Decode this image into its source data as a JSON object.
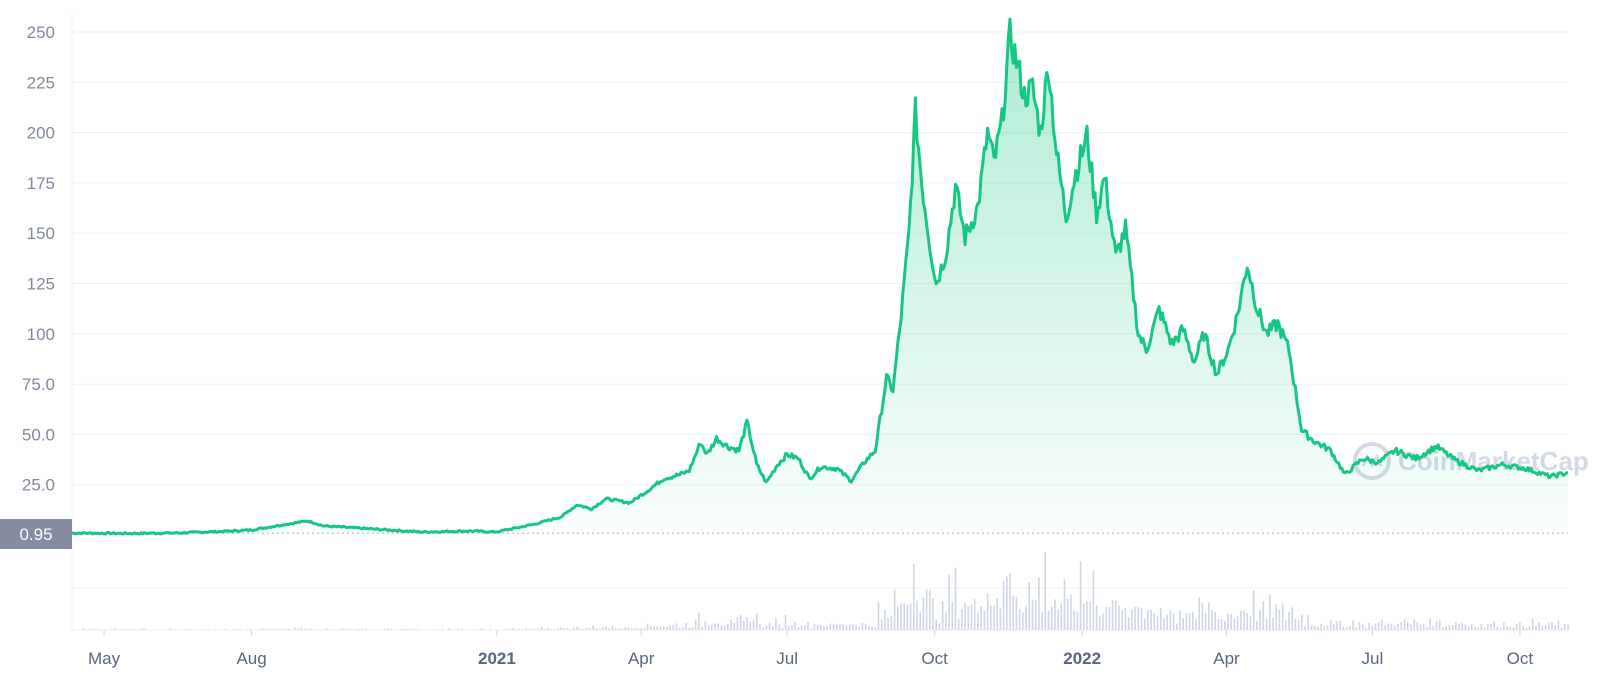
{
  "watermark": {
    "text": "CoinMarketCap",
    "icon": "coinmarketcap-logo-icon"
  },
  "colors": {
    "line": "#16c784",
    "fill_top": "#16c784",
    "grid": "#eff2f5",
    "volume": "#cfd6e4",
    "badge": "#858ca2",
    "axis_text": "#808a9d"
  },
  "chart_data": {
    "type": "area",
    "title": "",
    "xlabel": "",
    "ylabel": "",
    "ylim": [
      0,
      250
    ],
    "grid": true,
    "y_ticks": [
      "250",
      "225",
      "200",
      "175",
      "150",
      "125",
      "100",
      "75.0",
      "50.0",
      "25.0"
    ],
    "y_tick_values": [
      250,
      225,
      200,
      175,
      150,
      125,
      100,
      75,
      50,
      25
    ],
    "x_ticks": [
      {
        "label": "May",
        "date": "2020-05-01",
        "bold": false
      },
      {
        "label": "Aug",
        "date": "2020-08-01",
        "bold": false
      },
      {
        "label": "2021",
        "date": "2021-01-01",
        "bold": true
      },
      {
        "label": "Apr",
        "date": "2021-04-01",
        "bold": false
      },
      {
        "label": "Jul",
        "date": "2021-07-01",
        "bold": false
      },
      {
        "label": "Oct",
        "date": "2021-10-01",
        "bold": false
      },
      {
        "label": "2022",
        "date": "2022-01-01",
        "bold": true
      },
      {
        "label": "Apr",
        "date": "2022-04-01",
        "bold": false
      },
      {
        "label": "Jul",
        "date": "2022-07-01",
        "bold": false
      },
      {
        "label": "Oct",
        "date": "2022-10-01",
        "bold": false
      }
    ],
    "x_range": [
      "2020-04-11",
      "2022-10-31"
    ],
    "current_price": {
      "label": "0.95",
      "value": 0.95
    },
    "series": [
      {
        "points": [
          [
            "2020-04-11",
            0.95
          ],
          [
            "2020-05-15",
            0.8
          ],
          [
            "2020-06-15",
            1.0
          ],
          [
            "2020-07-15",
            1.8
          ],
          [
            "2020-08-01",
            2.5
          ],
          [
            "2020-08-20",
            5.0
          ],
          [
            "2020-09-05",
            7.0
          ],
          [
            "2020-09-15",
            4.5
          ],
          [
            "2020-10-15",
            3.0
          ],
          [
            "2020-11-15",
            1.5
          ],
          [
            "2020-12-15",
            2.0
          ],
          [
            "2020-12-31",
            1.5
          ],
          [
            "2021-01-10",
            3.0
          ],
          [
            "2021-01-25",
            5.5
          ],
          [
            "2021-02-10",
            9.0
          ],
          [
            "2021-02-20",
            15.0
          ],
          [
            "2021-03-01",
            13.0
          ],
          [
            "2021-03-10",
            18.0
          ],
          [
            "2021-03-25",
            16.0
          ],
          [
            "2021-04-05",
            22.0
          ],
          [
            "2021-04-15",
            28.0
          ],
          [
            "2021-04-25",
            30.0
          ],
          [
            "2021-05-01",
            32.0
          ],
          [
            "2021-05-08",
            46.0
          ],
          [
            "2021-05-12",
            40.0
          ],
          [
            "2021-05-18",
            48.0
          ],
          [
            "2021-05-25",
            44.0
          ],
          [
            "2021-06-01",
            42.0
          ],
          [
            "2021-06-06",
            56.0
          ],
          [
            "2021-06-12",
            35.0
          ],
          [
            "2021-06-18",
            26.0
          ],
          [
            "2021-06-25",
            35.0
          ],
          [
            "2021-07-01",
            40.0
          ],
          [
            "2021-07-08",
            38.0
          ],
          [
            "2021-07-15",
            28.0
          ],
          [
            "2021-07-22",
            34.0
          ],
          [
            "2021-08-01",
            33.0
          ],
          [
            "2021-08-10",
            27.0
          ],
          [
            "2021-08-18",
            36.0
          ],
          [
            "2021-08-25",
            42.0
          ],
          [
            "2021-09-01",
            78.0
          ],
          [
            "2021-09-05",
            72.0
          ],
          [
            "2021-09-10",
            108.0
          ],
          [
            "2021-09-15",
            150.0
          ],
          [
            "2021-09-19",
            210.0
          ],
          [
            "2021-09-23",
            175.0
          ],
          [
            "2021-09-28",
            145.0
          ],
          [
            "2021-10-02",
            125.0
          ],
          [
            "2021-10-08",
            140.0
          ],
          [
            "2021-10-14",
            173.0
          ],
          [
            "2021-10-20",
            148.0
          ],
          [
            "2021-10-28",
            163.0
          ],
          [
            "2021-11-03",
            200.0
          ],
          [
            "2021-11-07",
            185.0
          ],
          [
            "2021-11-12",
            205.0
          ],
          [
            "2021-11-17",
            248.0
          ],
          [
            "2021-11-21",
            236.0
          ],
          [
            "2021-11-26",
            218.0
          ],
          [
            "2021-12-01",
            222.0
          ],
          [
            "2021-12-06",
            200.0
          ],
          [
            "2021-12-11",
            234.0
          ],
          [
            "2021-12-16",
            190.0
          ],
          [
            "2021-12-22",
            158.0
          ],
          [
            "2021-12-28",
            180.0
          ],
          [
            "2022-01-04",
            198.0
          ],
          [
            "2022-01-10",
            160.0
          ],
          [
            "2022-01-15",
            178.0
          ],
          [
            "2022-01-22",
            138.0
          ],
          [
            "2022-01-28",
            152.0
          ],
          [
            "2022-02-05",
            100.0
          ],
          [
            "2022-02-10",
            92.0
          ],
          [
            "2022-02-18",
            112.0
          ],
          [
            "2022-02-26",
            95.0
          ],
          [
            "2022-03-05",
            102.0
          ],
          [
            "2022-03-12",
            86.0
          ],
          [
            "2022-03-18",
            100.0
          ],
          [
            "2022-03-26",
            80.0
          ],
          [
            "2022-04-02",
            92.0
          ],
          [
            "2022-04-08",
            110.0
          ],
          [
            "2022-04-14",
            135.0
          ],
          [
            "2022-04-20",
            113.0
          ],
          [
            "2022-04-26",
            100.0
          ],
          [
            "2022-05-03",
            105.0
          ],
          [
            "2022-05-10",
            92.0
          ],
          [
            "2022-05-18",
            52.0
          ],
          [
            "2022-05-25",
            47.0
          ],
          [
            "2022-06-05",
            42.0
          ],
          [
            "2022-06-14",
            30.0
          ],
          [
            "2022-06-25",
            38.0
          ],
          [
            "2022-07-05",
            36.0
          ],
          [
            "2022-07-15",
            42.0
          ],
          [
            "2022-07-28",
            38.0
          ],
          [
            "2022-08-10",
            44.0
          ],
          [
            "2022-08-22",
            37.0
          ],
          [
            "2022-09-05",
            32.0
          ],
          [
            "2022-09-20",
            35.0
          ],
          [
            "2022-10-05",
            33.0
          ],
          [
            "2022-10-20",
            29.0
          ],
          [
            "2022-10-31",
            31.0
          ]
        ]
      }
    ]
  }
}
